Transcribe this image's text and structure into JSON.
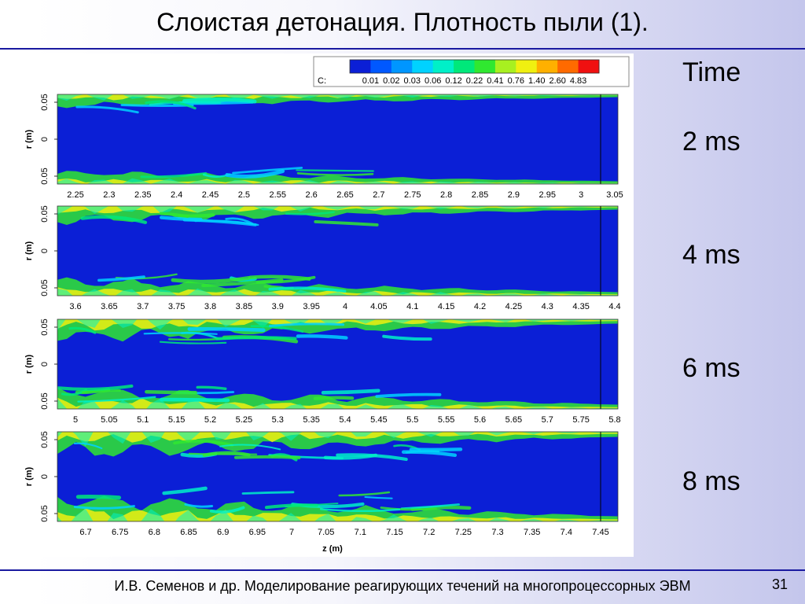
{
  "slide": {
    "title": "Слоистая детонация. Плотность пыли (1).",
    "footer": "И.В. Семенов и др. Моделирование реагирующих течений на многопроцессорных ЭВМ",
    "page_number": "31",
    "rule_color": "#1a1aa0"
  },
  "times": {
    "heading": "Time",
    "labels": [
      "2 ms",
      "4 ms",
      "6 ms",
      "8 ms"
    ]
  },
  "chart_data": {
    "type": "heatmap",
    "quantity": "dust density",
    "colorbar": {
      "prefix": "C:",
      "levels": [
        "0.01",
        "0.02",
        "0.03",
        "0.06",
        "0.12",
        "0.22",
        "0.41",
        "0.76",
        "1.40",
        "2.60",
        "4.83"
      ],
      "colors": [
        "#0b1fd6",
        "#0058ff",
        "#0096ff",
        "#00d2ff",
        "#00f0c8",
        "#00e87a",
        "#30e830",
        "#a8f020",
        "#f0f010",
        "#ffb000",
        "#ff6a00",
        "#f01010"
      ]
    },
    "panels": [
      {
        "time": "2 ms",
        "ylabel": "r (m)",
        "yticks": [
          "0.05",
          "0",
          "0.05"
        ],
        "xticks": [
          "2.25",
          "2.3",
          "2.35",
          "2.4",
          "2.45",
          "2.5",
          "2.55",
          "2.6",
          "2.65",
          "2.7",
          "2.75",
          "2.8",
          "2.85",
          "2.9",
          "2.95",
          "3",
          "3.05"
        ],
        "xlabel": ""
      },
      {
        "time": "4 ms",
        "ylabel": "r (m)",
        "yticks": [
          "0.05",
          "0",
          "0.05"
        ],
        "xticks": [
          "3.6",
          "3.65",
          "3.7",
          "3.75",
          "3.8",
          "3.85",
          "3.9",
          "3.95",
          "4",
          "4.05",
          "4.1",
          "4.15",
          "4.2",
          "4.25",
          "4.3",
          "4.35",
          "4.4"
        ],
        "xlabel": ""
      },
      {
        "time": "6 ms",
        "ylabel": "r (m)",
        "yticks": [
          "0.05",
          "0",
          "0.05"
        ],
        "xticks": [
          "5",
          "5.05",
          "5.1",
          "5.15",
          "5.2",
          "5.25",
          "5.3",
          "5.35",
          "5.4",
          "5.45",
          "5.5",
          "5.55",
          "5.6",
          "5.65",
          "5.7",
          "5.75",
          "5.8"
        ],
        "xlabel": ""
      },
      {
        "time": "8 ms",
        "ylabel": "r (m)",
        "yticks": [
          "0.05",
          "0",
          "0.05"
        ],
        "xticks": [
          "6.7",
          "6.75",
          "6.8",
          "6.85",
          "6.9",
          "6.95",
          "7",
          "7.05",
          "7.1",
          "7.15",
          "7.2",
          "7.25",
          "7.3",
          "7.35",
          "7.4",
          "7.45"
        ],
        "xlabel": "z (m)"
      }
    ]
  }
}
